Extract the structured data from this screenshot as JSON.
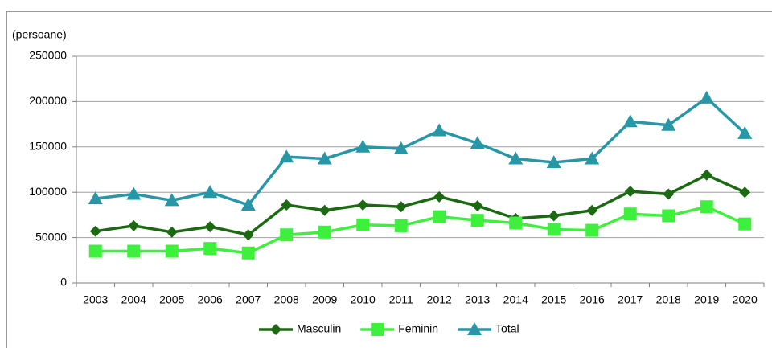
{
  "chart_data": {
    "type": "line",
    "y_axis_label": "(persoane)",
    "categories": [
      "2003",
      "2004",
      "2005",
      "2006",
      "2007",
      "2008",
      "2009",
      "2010",
      "2011",
      "2012",
      "2013",
      "2014",
      "2015",
      "2016",
      "2017",
      "2018",
      "2019",
      "2020"
    ],
    "series": [
      {
        "name": "Masculin",
        "color": "#1b6a12",
        "marker": "diamond",
        "values": [
          57000,
          63000,
          56000,
          62000,
          53000,
          86000,
          80000,
          86000,
          84000,
          95000,
          85000,
          71000,
          74000,
          80000,
          101000,
          98000,
          119000,
          100000
        ]
      },
      {
        "name": "Feminin",
        "color": "#3cf03c",
        "marker": "square",
        "values": [
          35000,
          35000,
          35000,
          38000,
          33000,
          53000,
          56000,
          64000,
          63000,
          73000,
          69000,
          66000,
          59000,
          58000,
          76000,
          74000,
          84000,
          65000
        ]
      },
      {
        "name": "Total",
        "color": "#2796a6",
        "marker": "triangle",
        "values": [
          93000,
          98000,
          91000,
          100000,
          86000,
          139000,
          137000,
          150000,
          148000,
          168000,
          154000,
          137000,
          133000,
          137000,
          178000,
          174000,
          204000,
          165000
        ]
      }
    ],
    "ylim": [
      0,
      250000
    ],
    "yticks": [
      0,
      50000,
      100000,
      150000,
      200000,
      250000
    ],
    "grid": true,
    "legend": "bottom"
  }
}
